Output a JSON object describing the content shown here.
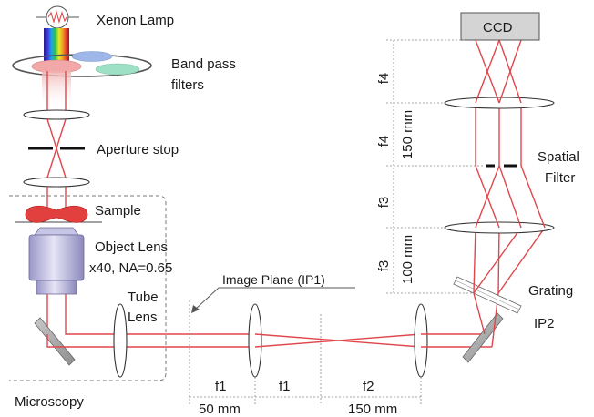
{
  "labels": {
    "xenon_lamp": "Xenon Lamp",
    "band_pass_1": "Band pass",
    "band_pass_2": "filters",
    "aperture_stop": "Aperture stop",
    "sample": "Sample",
    "object_lens_1": "Object Lens",
    "object_lens_2": "x40, NA=0.65",
    "tube_1": "Tube",
    "tube_2": "Lens",
    "image_plane": "Image Plane (IP1)",
    "microscopy": "Microscopy",
    "ccd": "CCD",
    "spatial_1": "Spatial",
    "spatial_2": "Filter",
    "grating": "Grating",
    "ip2": "IP2"
  },
  "dimensions": {
    "bottom_f1a": "f1",
    "bottom_50": "50 mm",
    "bottom_f1b": "f1",
    "bottom_f2": "f2",
    "bottom_150": "150 mm",
    "right_f4a": "f4",
    "right_f4b": "f4",
    "right_150": "150 mm",
    "right_f3a": "f3",
    "right_f3b": "f3",
    "right_100": "100 mm"
  }
}
